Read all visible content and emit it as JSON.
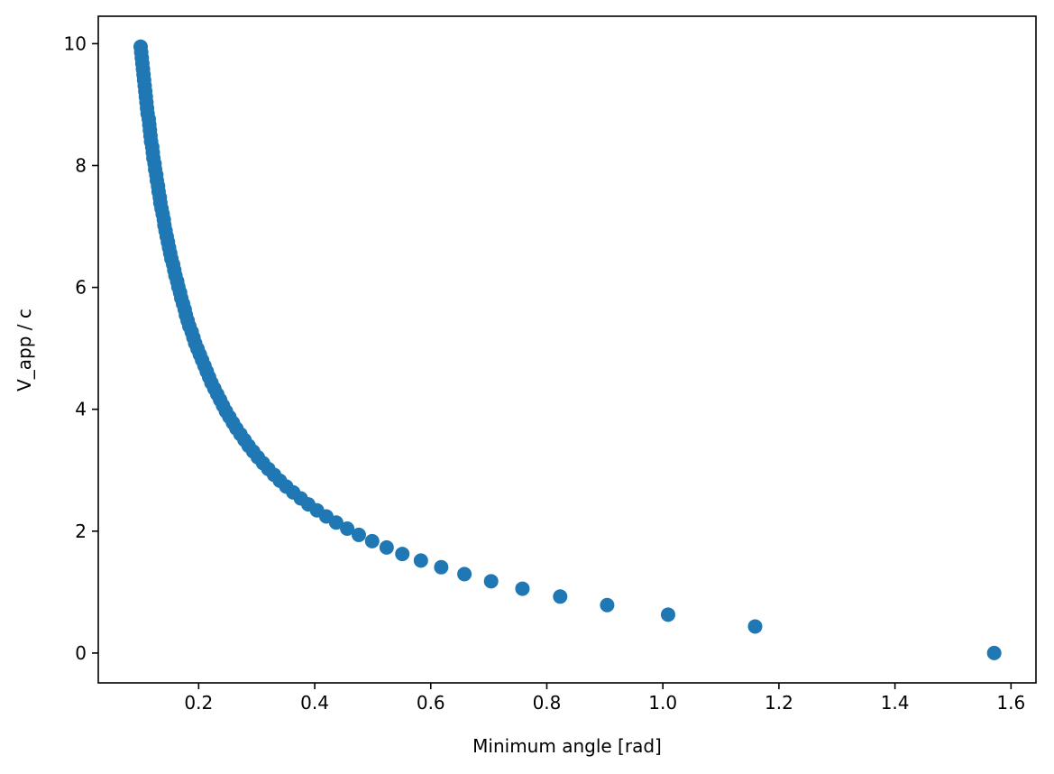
{
  "chart_data": {
    "type": "scatter",
    "title": "",
    "xlabel": "Minimum angle [rad]",
    "ylabel": "V_app / c",
    "xlim": [
      0.027,
      1.643
    ],
    "ylim": [
      -0.49,
      10.45
    ],
    "grid": false,
    "legend": null,
    "marker_color": "#1f77b4",
    "x_ticks": [
      0.2,
      0.4,
      0.6,
      0.8,
      1.0,
      1.2,
      1.4,
      1.6
    ],
    "x_tick_labels": [
      "0.2",
      "0.4",
      "0.6",
      "0.8",
      "1.0",
      "1.2",
      "1.4",
      "1.6"
    ],
    "y_ticks": [
      0,
      2,
      4,
      6,
      8,
      10
    ],
    "y_tick_labels": [
      "0",
      "2",
      "4",
      "6",
      "8",
      "10"
    ],
    "series": [
      {
        "name": "V_app / c",
        "x": [
          1.571,
          1.159,
          1.009,
          0.904,
          0.823,
          0.758,
          0.704,
          0.658,
          0.618,
          0.583,
          0.551,
          0.524,
          0.499,
          0.476,
          0.456,
          0.437,
          0.42,
          0.404,
          0.389,
          0.376,
          0.363,
          0.351,
          0.34,
          0.33,
          0.32,
          0.311,
          0.302,
          0.294,
          0.286,
          0.279,
          0.272,
          0.265,
          0.259,
          0.253,
          0.247,
          0.242,
          0.237,
          0.232,
          0.227,
          0.222,
          0.218,
          0.214,
          0.21,
          0.206,
          0.202,
          0.198,
          0.194,
          0.191,
          0.188,
          0.184,
          0.181,
          0.178,
          0.176,
          0.173,
          0.17,
          0.168,
          0.165,
          0.163,
          0.16,
          0.158,
          0.156,
          0.153,
          0.151,
          0.149,
          0.147,
          0.145,
          0.143,
          0.141,
          0.14,
          0.138,
          0.136,
          0.134,
          0.133,
          0.131,
          0.13,
          0.128,
          0.127,
          0.125,
          0.124,
          0.122,
          0.121,
          0.12,
          0.118,
          0.117,
          0.116,
          0.115,
          0.114,
          0.112,
          0.111,
          0.11,
          0.109,
          0.108,
          0.107,
          0.106,
          0.105,
          0.104,
          0.103,
          0.102,
          0.101,
          0.1
        ],
        "y": [
          0.0,
          0.436,
          0.63,
          0.787,
          0.927,
          1.056,
          1.178,
          1.295,
          1.408,
          1.518,
          1.626,
          1.732,
          1.836,
          1.939,
          2.041,
          2.142,
          2.242,
          2.341,
          2.439,
          2.537,
          2.635,
          2.732,
          2.828,
          2.925,
          3.021,
          3.116,
          3.212,
          3.307,
          3.401,
          3.496,
          3.591,
          3.685,
          3.779,
          3.873,
          3.967,
          4.06,
          4.154,
          4.247,
          4.341,
          4.434,
          4.527,
          4.62,
          4.713,
          4.806,
          4.899,
          4.992,
          5.084,
          5.177,
          5.27,
          5.362,
          5.455,
          5.547,
          5.639,
          5.732,
          5.824,
          5.916,
          6.008,
          6.1,
          6.193,
          6.285,
          6.377,
          6.469,
          6.561,
          6.653,
          6.744,
          6.836,
          6.928,
          7.02,
          7.112,
          7.204,
          7.295,
          7.387,
          7.479,
          7.571,
          7.662,
          7.754,
          7.846,
          7.937,
          8.029,
          8.12,
          8.212,
          8.304,
          8.395,
          8.487,
          8.578,
          8.67,
          8.761,
          8.853,
          8.944,
          9.036,
          9.127,
          9.219,
          9.31,
          9.402,
          9.493,
          9.584,
          9.676,
          9.767,
          9.858,
          9.95
        ]
      }
    ]
  }
}
